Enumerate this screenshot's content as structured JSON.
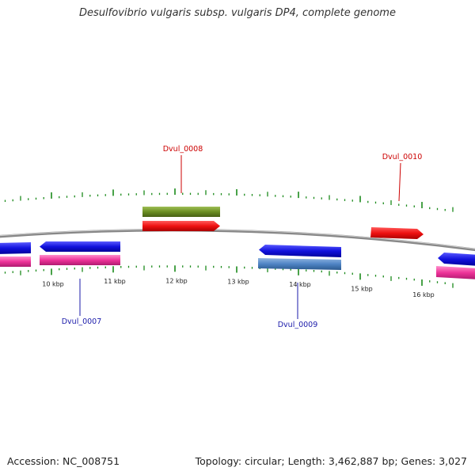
{
  "title": "Desulfovibrio vulgaris subsp. vulgaris DP4, complete genome",
  "footer": {
    "accession": "Accession: NC_008751",
    "summary": "Topology: circular; Length: 3,462,887 bp; Genes: 3,027"
  },
  "ticks": [
    {
      "kb": 10,
      "label": "10 kbp"
    },
    {
      "kb": 11,
      "label": "11 kbp"
    },
    {
      "kb": 12,
      "label": "12 kbp"
    },
    {
      "kb": 13,
      "label": "13 kbp"
    },
    {
      "kb": 14,
      "label": "14 kbp"
    },
    {
      "kb": 15,
      "label": "15 kbp"
    },
    {
      "kb": 16,
      "label": "16 kbp"
    }
  ],
  "labels": [
    {
      "text": "Dvul_0007",
      "color": "#1a1aaa"
    },
    {
      "text": "Dvul_0008",
      "color": "#cc0000"
    },
    {
      "text": "Dvul_0009",
      "color": "#1a1aaa"
    },
    {
      "text": "Dvul_0010",
      "color": "#cc0000"
    }
  ],
  "colors": {
    "forward_cds": "#ee1111",
    "reverse_cds": "#1111dd",
    "reverse_cds_light": "#4f84c4",
    "gene_track_forward": "#6b8e23",
    "gene_track_reverse": "#ee3399",
    "ticks": "#1b8a1b",
    "backbone": "#888888"
  }
}
